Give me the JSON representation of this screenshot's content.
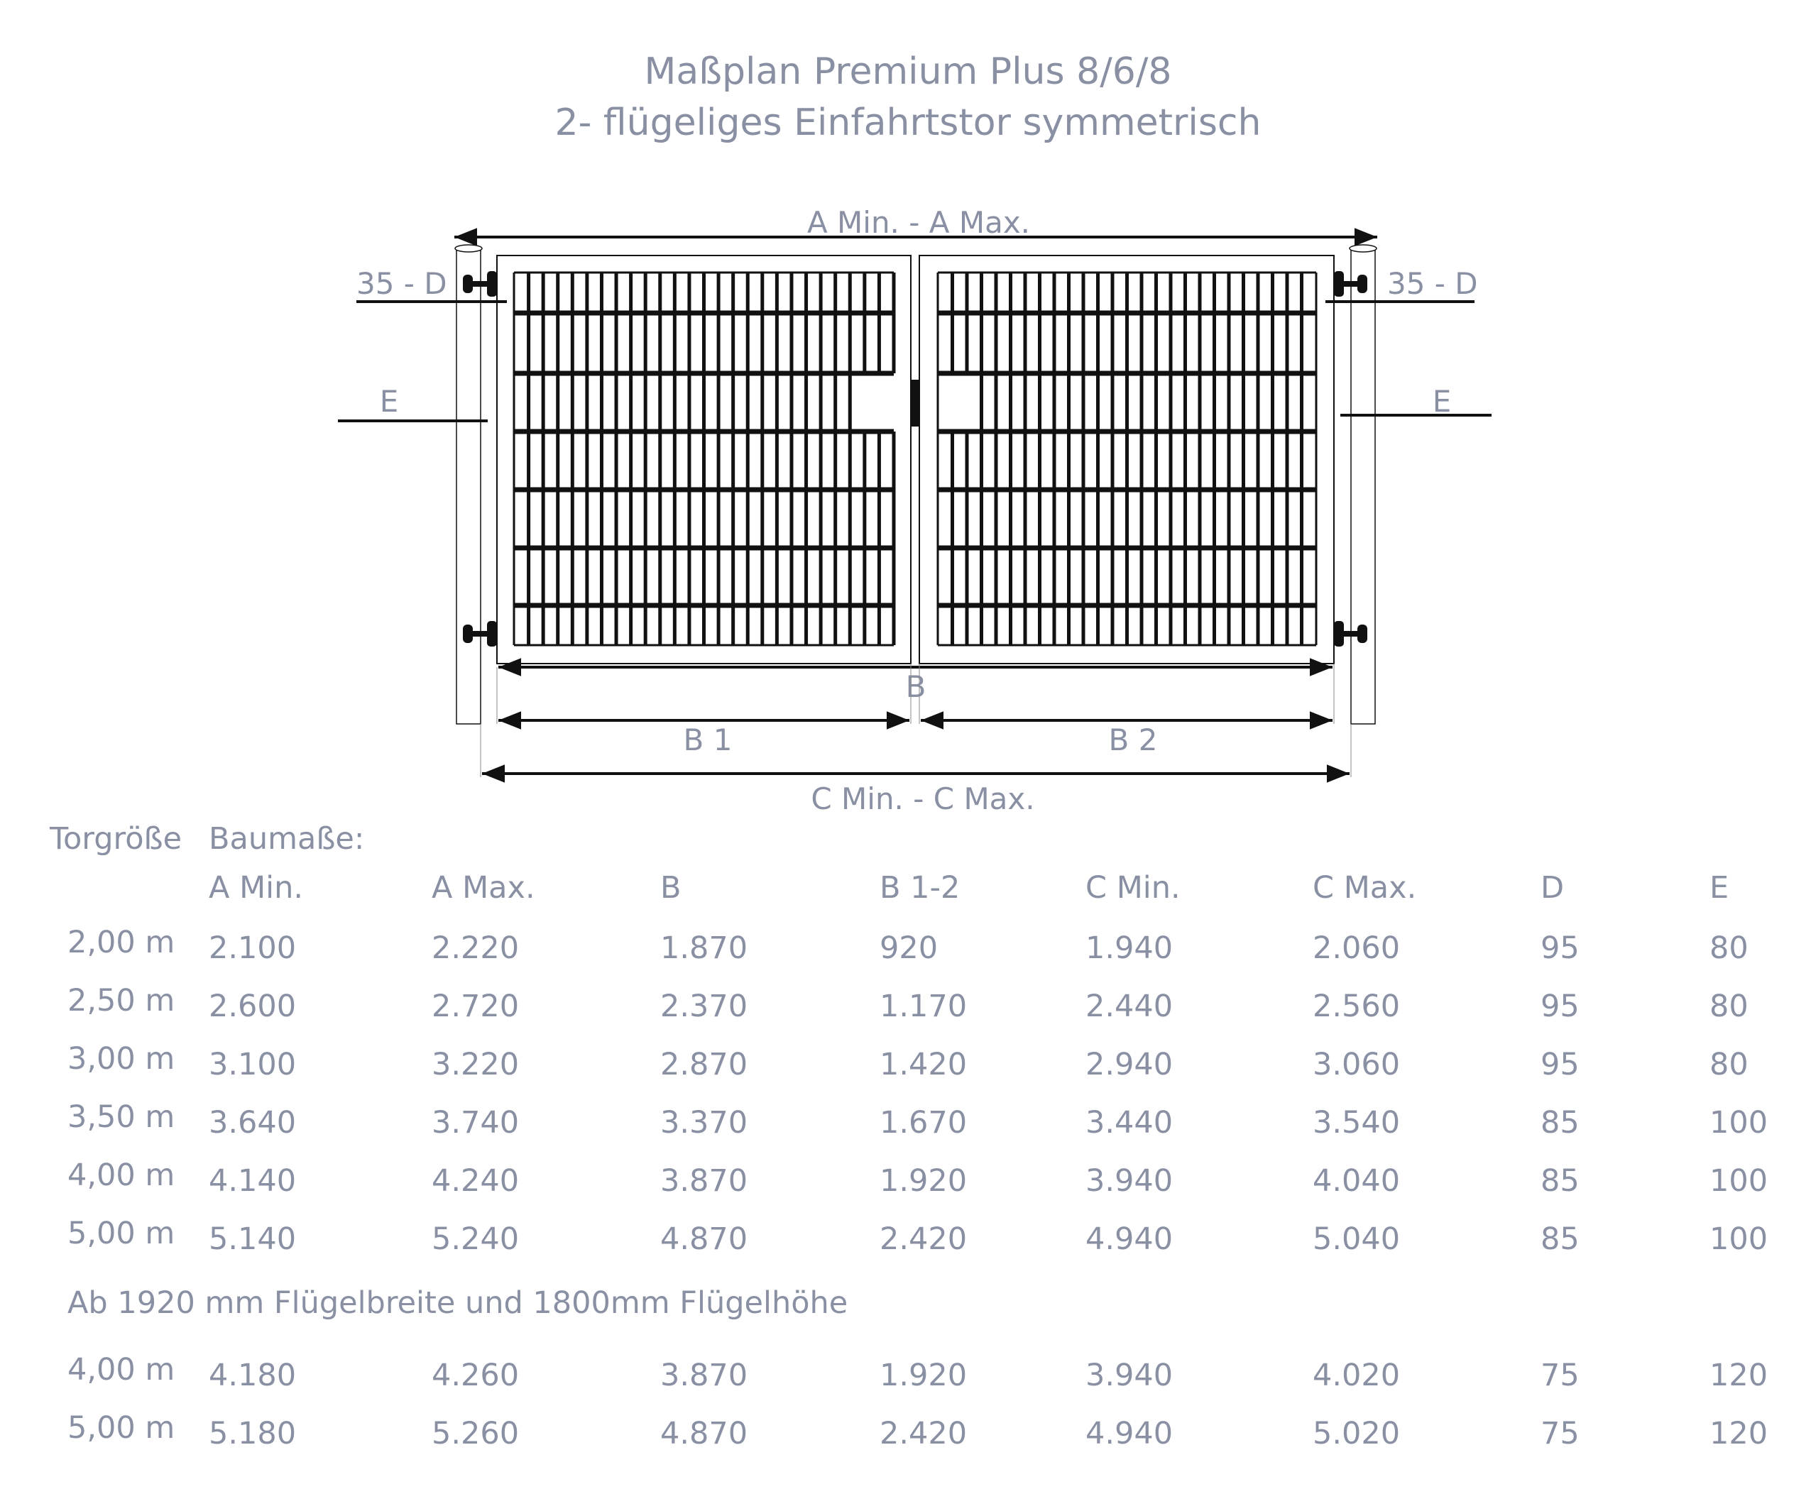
{
  "title": {
    "line1": "Maßplan Premium Plus 8/6/8",
    "line2": "2- flügeliges Einfahrtstor symmetrisch"
  },
  "drawing": {
    "label_a": "A Min. - A Max.",
    "label_d_left": "35 -  D",
    "label_d_right": "35 - D",
    "label_e_left": "E",
    "label_e_right": "E",
    "label_b": "B",
    "label_b1": "B 1",
    "label_b2": "B 2",
    "label_c": "C Min. - C Max."
  },
  "colors": {
    "text": "#8a90a3",
    "lines": "#111111"
  },
  "table": {
    "col_torgroesse": "Torgröße",
    "col_baumasse": "Baumaße:",
    "headers": [
      "A Min.",
      "A Max.",
      "B",
      "B 1-2",
      "C Min.",
      "C Max.",
      "D",
      "E"
    ],
    "rows": [
      [
        "2,00 m",
        "2.100",
        "2.220",
        "1.870",
        "920",
        "1.940",
        "2.060",
        "95",
        "80"
      ],
      [
        "2,50 m",
        "2.600",
        "2.720",
        "2.370",
        "1.170",
        "2.440",
        "2.560",
        "95",
        "80"
      ],
      [
        "3,00 m",
        "3.100",
        "3.220",
        "2.870",
        "1.420",
        "2.940",
        "3.060",
        "95",
        "80"
      ],
      [
        "3,50 m",
        "3.640",
        "3.740",
        "3.370",
        "1.670",
        "3.440",
        "3.540",
        "85",
        "100"
      ],
      [
        "4,00 m",
        "4.140",
        "4.240",
        "3.870",
        "1.920",
        "3.940",
        "4.040",
        "85",
        "100"
      ],
      [
        "5,00 m",
        "5.140",
        "5.240",
        "4.870",
        "2.420",
        "4.940",
        "5.040",
        "85",
        "100"
      ]
    ],
    "note": "Ab 1920 mm Flügelbreite und 1800mm Flügelhöhe",
    "extra_rows": [
      [
        "4,00 m",
        "4.180",
        "4.260",
        "3.870",
        "1.920",
        "3.940",
        "4.020",
        "75",
        "120"
      ],
      [
        "5,00 m",
        "5.180",
        "5.260",
        "4.870",
        "2.420",
        "4.940",
        "5.020",
        "75",
        "120"
      ]
    ]
  }
}
